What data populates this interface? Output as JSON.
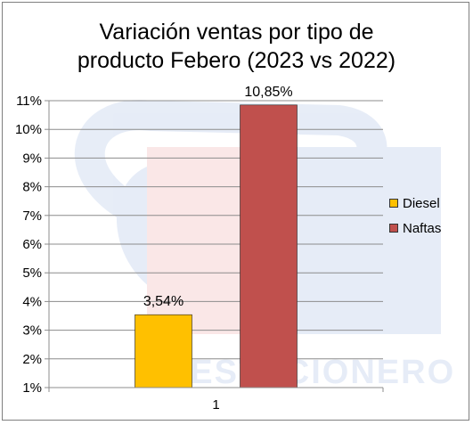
{
  "chart_data": {
    "type": "bar",
    "title": [
      "Variación ventas por tipo de",
      "producto Febero (2023 vs 2022)"
    ],
    "categories": [
      "1"
    ],
    "series": [
      {
        "name": "Diesel",
        "values": [
          3.54
        ],
        "label": "3,54%",
        "color": "#ffc000"
      },
      {
        "name": "Naftas",
        "values": [
          10.85
        ],
        "label": "10,85%",
        "color": "#c0504d"
      }
    ],
    "y_ticks": [
      "1%",
      "2%",
      "3%",
      "4%",
      "5%",
      "6%",
      "7%",
      "8%",
      "9%",
      "10%",
      "11%"
    ],
    "ylim": [
      1,
      11
    ],
    "grid": true,
    "legend_position": "right"
  },
  "watermark": {
    "text": "EL ESTACIONERO"
  }
}
